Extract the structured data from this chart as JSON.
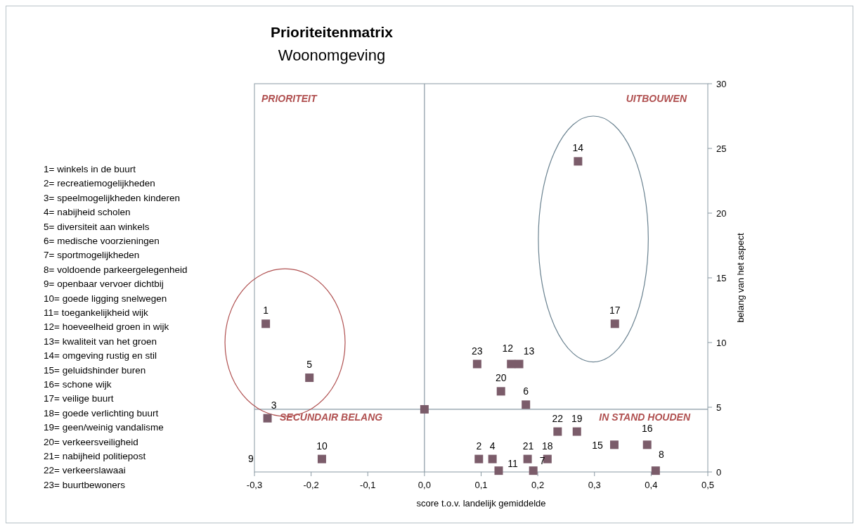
{
  "chart_data": {
    "type": "scatter",
    "title": "Prioriteitenmatrix",
    "subtitle": "Woonomgeving",
    "xlabel": "score t.o.v. landelijk gemiddelde",
    "ylabel": "belang van het aspect",
    "series": [
      {
        "color": "#7b5c6a",
        "x": [
          -0.28,
          0.096,
          -0.277,
          0.12,
          -0.203,
          0.179,
          0.192,
          0.408,
          -0.181,
          0.131,
          0.153,
          0.167,
          0.271,
          0.335,
          0.393,
          0.336,
          0.217,
          0.269,
          0.135,
          0.182,
          0.235,
          0.093,
          0
        ],
        "values": [
          11.45,
          1.0,
          4.15,
          1.0,
          7.28,
          5.2,
          0.1,
          0.1,
          1.0,
          0.1,
          8.34,
          8.34,
          24.0,
          2.1,
          2.1,
          11.45,
          1.0,
          3.12,
          6.23,
          1.0,
          3.12,
          8.34,
          4.84
        ]
      }
    ],
    "marker": "square",
    "grid": false,
    "xlim": [
      -0.3,
      0.5
    ],
    "xticks": [
      {
        "value": -0.3,
        "label": "-0,3"
      },
      {
        "value": -0.2,
        "label": "-0,2"
      },
      {
        "value": -0.1,
        "label": "-0,1"
      },
      {
        "value": 0,
        "label": "0,0"
      },
      {
        "value": 0.1,
        "label": "0,1"
      },
      {
        "value": 0.2,
        "label": "0,2"
      },
      {
        "value": 0.3,
        "label": "0,3"
      },
      {
        "value": 0.4,
        "label": "0,4"
      },
      {
        "value": 0.5,
        "label": "0,5"
      }
    ],
    "ylim": [
      0,
      30
    ],
    "yticks": [
      0,
      5,
      10,
      15,
      20,
      25,
      30
    ],
    "ref_lines": [
      {
        "axis": "x",
        "value": 0,
        "color": "#8a9aa4"
      },
      {
        "axis": "y",
        "value": 4.84,
        "color": "#8a9aa4"
      }
    ],
    "annotations": [
      {
        "text": "1",
        "x": -0.28,
        "y": 11.45
      },
      {
        "text": "2",
        "x": 0.096,
        "y": 1.0
      },
      {
        "text": "3",
        "x": -0.277,
        "y": 4.15
      },
      {
        "text": "4",
        "x": 0.12,
        "y": 1.0
      },
      {
        "text": "5",
        "x": -0.203,
        "y": 7.28
      },
      {
        "text": "6",
        "x": 0.179,
        "y": 5.2
      },
      {
        "text": "7",
        "x": 0.192,
        "y": 0.1
      },
      {
        "text": "8",
        "x": 0.408,
        "y": 0.1
      },
      {
        "text": "10",
        "x": -0.181,
        "y": 1.0
      },
      {
        "text": "11",
        "x": 0.131,
        "y": 0.1
      },
      {
        "text": "12",
        "x": 0.153,
        "y": 8.34
      },
      {
        "text": "13",
        "x": 0.167,
        "y": 8.34
      },
      {
        "text": "14",
        "x": 0.271,
        "y": 24.0
      },
      {
        "text": "15",
        "x": 0.335,
        "y": 2.1
      },
      {
        "text": "16",
        "x": 0.393,
        "y": 2.1
      },
      {
        "text": "17",
        "x": 0.336,
        "y": 11.45
      },
      {
        "text": "18",
        "x": 0.217,
        "y": 1.0
      },
      {
        "text": "19",
        "x": 0.269,
        "y": 3.12
      },
      {
        "text": "20",
        "x": 0.135,
        "y": 6.23
      },
      {
        "text": "21",
        "x": 0.182,
        "y": 1.0
      },
      {
        "text": "22",
        "x": 0.235,
        "y": 3.12
      },
      {
        "text": "23",
        "x": 0.093,
        "y": 8.34
      },
      "PRIORITEIT",
      "UITBOUWEN",
      "SECUNDAIR BELANG",
      "IN STAND HOUDEN",
      "1= winkels in de buurt",
      "2= recreatiemogelijkheden",
      "3= speelmogelijkheden kinderen",
      "4= nabijheid scholen",
      "5= diversiteit aan winkels",
      "6= medische voorzieningen",
      "7= sportmogelijkheden",
      "8= voldoende parkeergelegenheid",
      "9= openbaar vervoer dichtbij",
      "10= goede ligging snelwegen",
      "11= toegankelijkheid wijk",
      "12= hoeveelheid groen in wijk",
      "13= kwaliteit van het groen",
      "14= omgeving rustig en stil",
      "15= geluidshinder buren",
      "16= schone wijk",
      "17= veilige buurt",
      "18= goede verlichting buurt",
      "19= geen/weinig vandalisme",
      "20= verkeersveiligheid",
      "21= nabijheid politiepost",
      "22= verkeerslawaai",
      "23= buurtbewoners",
      "9"
    ]
  }
}
